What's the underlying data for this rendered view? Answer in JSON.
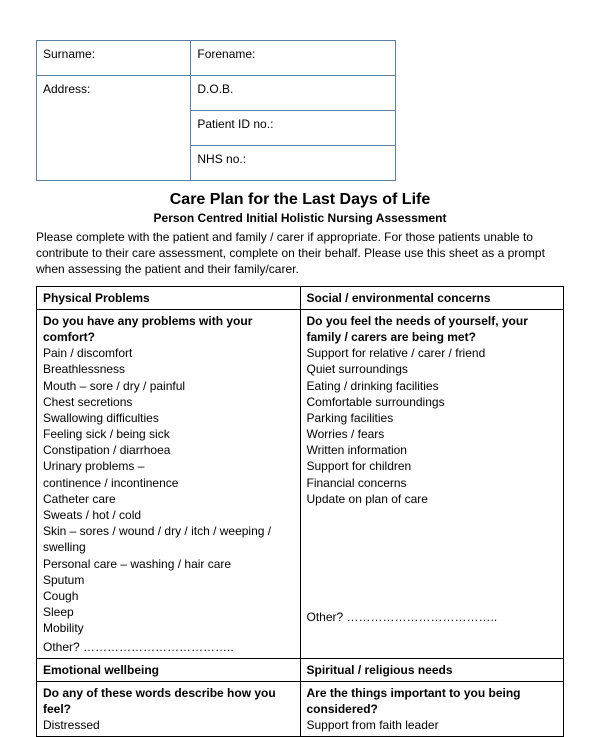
{
  "patient": {
    "surname_label": "Surname:",
    "forename_label": "Forename:",
    "address_label": "Address:",
    "dob_label": "D.O.B.",
    "patient_id_label": "Patient ID no.:",
    "nhs_label": "NHS no.:"
  },
  "title": "Care Plan for the Last Days of Life",
  "subtitle": "Person Centred Initial Holistic Nursing Assessment",
  "instructions": "Please complete with the patient and family / carer if appropriate. For those patients unable to contribute to their care assessment, complete on their behalf. Please use this sheet as a prompt when assessing the patient and their family/carer.",
  "sections": {
    "physical": {
      "header": "Physical Problems",
      "question": "Do you have any problems with your comfort?",
      "items": [
        "Pain / discomfort",
        "Breathlessness",
        "Mouth – sore / dry / painful",
        "Chest secretions",
        "Swallowing difficulties",
        "Feeling sick / being sick",
        "Constipation / diarrhoea",
        "Urinary problems –",
        "continence / incontinence",
        "Catheter care",
        "Sweats / hot / cold",
        "Skin – sores / wound / dry / itch / weeping / swelling",
        "Personal care – washing / hair care",
        "Sputum",
        "Cough",
        "Sleep",
        "Mobility"
      ],
      "other": "Other? ……………………………….."
    },
    "social": {
      "header": "Social / environmental concerns",
      "question": "Do you feel the needs of yourself, your family / carers are being met?",
      "items": [
        "Support for relative / carer / friend",
        "Quiet surroundings",
        "Eating / drinking facilities",
        "Comfortable surroundings",
        "Parking facilities",
        "Worries / fears",
        "Written information",
        "Support for children",
        "Financial concerns",
        "Update on plan of care"
      ],
      "other": "Other? ……………………………….."
    },
    "emotional": {
      "header": "Emotional wellbeing",
      "question": "Do any of these words describe how you feel?",
      "items": [
        "Distressed"
      ]
    },
    "spiritual": {
      "header": "Spiritual / religious needs",
      "question": "Are the things important to you being considered?",
      "items": [
        "Support from faith leader"
      ]
    }
  }
}
